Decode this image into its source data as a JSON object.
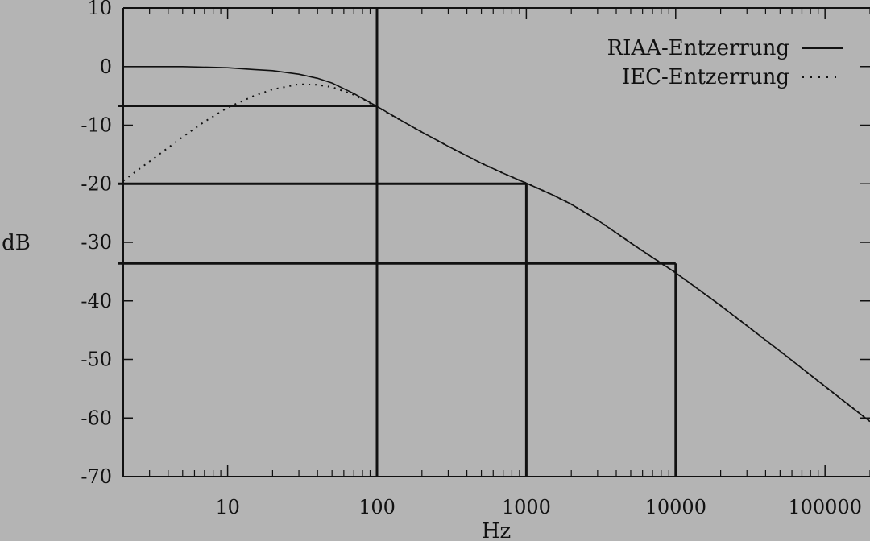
{
  "colors": {
    "background": "#b4b4b4",
    "ink": "#111111"
  },
  "chart_data": {
    "type": "line",
    "xscale": "log",
    "xlabel": "Hz",
    "ylabel": "dB",
    "xlim": [
      2,
      200000
    ],
    "ylim": [
      -70,
      10
    ],
    "grid": false,
    "legend_position": "top-right",
    "xticks": [
      {
        "value": 10,
        "label": "10"
      },
      {
        "value": 100,
        "label": "100"
      },
      {
        "value": 1000,
        "label": "1000"
      },
      {
        "value": 10000,
        "label": "10000"
      },
      {
        "value": 100000,
        "label": "100000"
      }
    ],
    "yticks": [
      {
        "value": 10,
        "label": "10"
      },
      {
        "value": 0,
        "label": "0"
      },
      {
        "value": -10,
        "label": "-10"
      },
      {
        "value": -20,
        "label": "-20"
      },
      {
        "value": -30,
        "label": "-30"
      },
      {
        "value": -40,
        "label": "-40"
      },
      {
        "value": -50,
        "label": "-50"
      },
      {
        "value": -60,
        "label": "-60"
      },
      {
        "value": -70,
        "label": "-70"
      }
    ],
    "series": [
      {
        "name": "RIAA-Entzerrung",
        "style": "solid",
        "x": [
          2,
          5,
          10,
          15,
          20,
          30,
          40,
          50,
          70,
          100,
          150,
          200,
          300,
          500,
          700,
          1000,
          1500,
          2000,
          3000,
          5000,
          7000,
          10000,
          20000,
          50000,
          100000,
          200000
        ],
        "y": [
          0,
          0,
          -0.2,
          -0.5,
          -0.7,
          -1.3,
          -2.0,
          -2.8,
          -4.6,
          -6.8,
          -9.4,
          -11.2,
          -13.6,
          -16.5,
          -18.2,
          -19.9,
          -21.9,
          -23.5,
          -26.2,
          -30.1,
          -32.6,
          -35.2,
          -40.8,
          -48.6,
          -54.6,
          -60.6
        ]
      },
      {
        "name": "IEC-Entzerrung",
        "style": "dotted",
        "x": [
          2,
          3,
          5,
          7,
          10,
          15,
          20,
          30,
          40,
          50,
          70,
          100,
          150,
          200,
          300,
          500,
          700,
          1000,
          1500,
          2000,
          3000,
          5000,
          7000,
          10000,
          20000,
          50000,
          100000,
          200000
        ],
        "y": [
          -19.5,
          -16.2,
          -12.0,
          -9.4,
          -7.0,
          -5.0,
          -3.9,
          -3.0,
          -3.1,
          -3.5,
          -4.8,
          -6.9,
          -9.4,
          -11.2,
          -13.6,
          -16.5,
          -18.2,
          -19.9,
          -21.9,
          -23.5,
          -26.2,
          -30.1,
          -32.6,
          -35.2,
          -40.8,
          -48.6,
          -54.6,
          -60.6
        ]
      }
    ],
    "reference_lines": [
      {
        "freq": 100,
        "db": -6.7
      },
      {
        "freq": 1000,
        "db": -20
      },
      {
        "freq": 10000,
        "db": -33.6
      }
    ]
  }
}
